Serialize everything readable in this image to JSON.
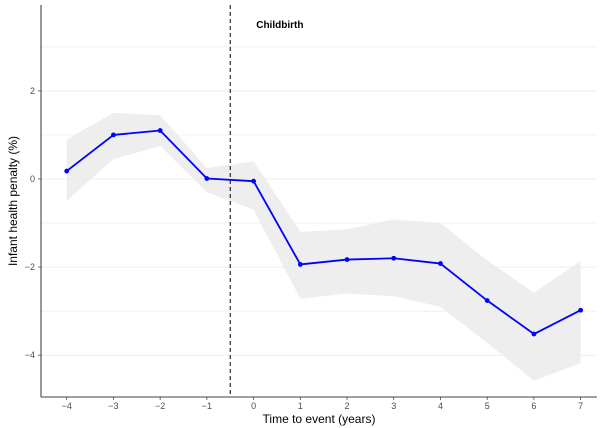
{
  "chart_data": {
    "type": "line",
    "title": "",
    "xlabel": "Time to event (years)",
    "ylabel": "Infant health penalty  (%)",
    "xlim": [
      -4.55,
      7.35
    ],
    "ylim": [
      -4.95,
      3.95
    ],
    "x_ticks": [
      -4,
      -3,
      -2,
      -1,
      0,
      1,
      2,
      3,
      4,
      5,
      6,
      7
    ],
    "y_ticks": [
      -4,
      -2,
      0,
      2
    ],
    "grid": "horizontal",
    "legend": "none",
    "annotation": {
      "text": "Childbirth",
      "x": -0.5
    },
    "event_line_x": -0.5,
    "series": [
      {
        "color": "#0000ff",
        "x": [
          -4,
          -3,
          -2,
          -1,
          0,
          1,
          2,
          3,
          4,
          5,
          6,
          7
        ],
        "y": [
          0.18,
          1.0,
          1.1,
          0.01,
          -0.05,
          -1.94,
          -1.83,
          -1.8,
          -1.92,
          -2.76,
          -3.52,
          -2.98
        ],
        "ci_lower": [
          -0.5,
          0.45,
          0.75,
          -0.3,
          -0.7,
          -2.72,
          -2.6,
          -2.66,
          -2.9,
          -3.72,
          -4.58,
          -4.18
        ],
        "ci_upper": [
          0.9,
          1.5,
          1.45,
          0.25,
          0.4,
          -1.2,
          -1.14,
          -0.92,
          -1.0,
          -1.85,
          -2.58,
          -1.86
        ]
      }
    ],
    "band_color": "#ebebeb"
  }
}
